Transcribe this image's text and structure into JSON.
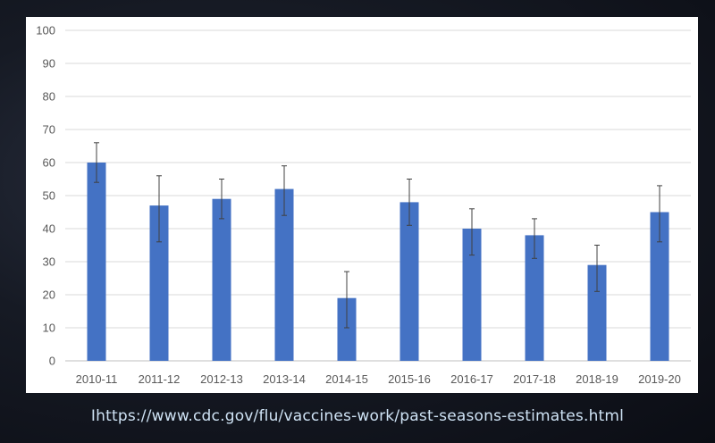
{
  "chart_data": {
    "type": "bar",
    "title": "",
    "xlabel": "",
    "ylabel": "",
    "categories": [
      "2010-11",
      "2011-12",
      "2012-13",
      "2013-14",
      "2014-15",
      "2015-16",
      "2016-17",
      "2017-18",
      "2018-19",
      "2019-20"
    ],
    "values": [
      60,
      47,
      49,
      52,
      19,
      48,
      40,
      38,
      29,
      45
    ],
    "error_upper": [
      66,
      56,
      55,
      59,
      27,
      55,
      46,
      43,
      35,
      53
    ],
    "error_lower": [
      54,
      36,
      43,
      44,
      10,
      41,
      32,
      31,
      21,
      36
    ],
    "ylim": [
      0,
      100
    ],
    "yticks": [
      0,
      10,
      20,
      30,
      40,
      50,
      60,
      70,
      80,
      90,
      100
    ],
    "grid": true,
    "bar_color": "#4472C4",
    "error_bar_color": "#404040"
  },
  "caption": {
    "url": "Ihttps://www.cdc.gov/flu/vaccines-work/past-seasons-estimates.html"
  }
}
